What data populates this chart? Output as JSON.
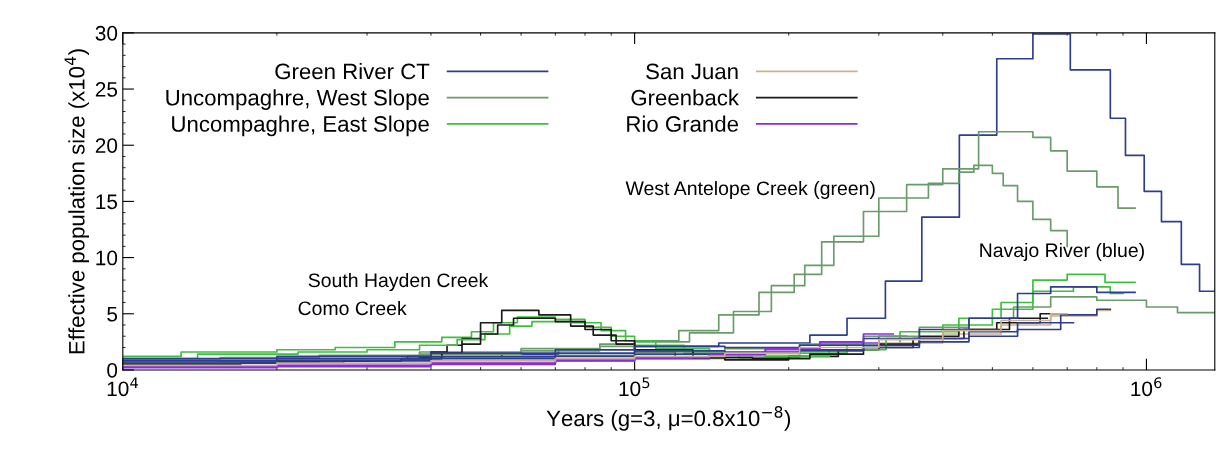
{
  "chart_data": {
    "type": "step",
    "xlabel": "Years (g=3, μ=0.8x10$^{−8}$)",
    "ylabel": "Effective population size (x10$^{4}$)",
    "log": "x",
    "xlim": [
      10000,
      1360000
    ],
    "xticks": [
      {
        "value": 10000,
        "label": "10$^{4}$"
      },
      {
        "value": 100000,
        "label": "10$^{5}$"
      },
      {
        "value": 1000000,
        "label": "10$^{6}$"
      }
    ],
    "ylim": [
      0,
      30
    ],
    "yticks": [
      0,
      5,
      10,
      15,
      20,
      25,
      30
    ],
    "legend": "top left",
    "annotations": [
      "West Antelope Creek (green)",
      "Navajo River (blue)",
      "South Hayden Creek",
      "Como Creek"
    ],
    "series": [
      {
        "name": "Green River CT",
        "color": "#2e3d8f",
        "x": [
          10000,
          15500,
          24200,
          38000,
          55000,
          71000,
          100000,
          146000,
          220000,
          260000,
          309000,
          364000,
          431000,
          510000,
          600000,
          710000,
          850000,
          910000,
          990000,
          1070000,
          1170000,
          1270000,
          1360000
        ],
        "values": [
          0.5,
          0.7,
          0.9,
          1.1,
          1.4,
          1.8,
          2.1,
          2.4,
          3.1,
          4.6,
          7.9,
          13.6,
          20.9,
          27.7,
          29.9,
          26.7,
          22.4,
          19.1,
          15.9,
          13.2,
          9.4,
          7.0,
          7.0
        ]
      },
      {
        "name": "Uncompaghre, West Slope",
        "color": "#6b9a6b",
        "x": [
          10000,
          15500,
          24200,
          38000,
          60000,
          85500,
          100000,
          122000,
          146000,
          175000,
          205000,
          232000,
          280000,
          340000,
          400000,
          470000,
          600000,
          650000,
          700000,
          800000,
          880000,
          950000
        ],
        "values": [
          0.9,
          1.1,
          1.3,
          1.6,
          1.9,
          2.3,
          2.6,
          3.5,
          4.9,
          6.9,
          8.5,
          11.4,
          14.1,
          16.5,
          17.9,
          21.2,
          20.7,
          19.5,
          17.7,
          16.3,
          14.4,
          14.4
        ]
      },
      {
        "name": "Uncompaghre, East Slope",
        "color": "#3ebf3e",
        "x": [
          10000,
          13000,
          20000,
          26000,
          34000,
          42000,
          48000,
          53000,
          59000,
          70000,
          80000,
          90000,
          100000,
          125000,
          160000,
          210000,
          260000,
          330000,
          430000,
          520000,
          600000,
          700000,
          830000,
          950000
        ],
        "values": [
          1.2,
          1.6,
          1.8,
          2.0,
          2.5,
          2.9,
          3.4,
          4.2,
          4.7,
          4.5,
          3.8,
          3.0,
          2.2,
          1.5,
          1.1,
          1.5,
          2.2,
          3.4,
          4.6,
          6.0,
          8.0,
          8.5,
          7.8,
          7.8
        ]
      },
      {
        "name": "San Juan",
        "color": "#c9b28f",
        "x": [
          10000,
          20000,
          40000,
          70000,
          100000,
          150000,
          210000,
          300000,
          400000,
          520000,
          650000,
          800000,
          850000
        ],
        "values": [
          0.3,
          0.4,
          0.6,
          0.8,
          1.0,
          1.3,
          1.8,
          2.4,
          3.2,
          4.0,
          4.8,
          5.3,
          5.3
        ]
      },
      {
        "name": "Greenback",
        "color": "#1a1a1a",
        "x": [
          10000,
          15500,
          24200,
          30400,
          36000,
          40000,
          43000,
          46000,
          50000,
          55000,
          65000,
          75000,
          83000,
          92000,
          100000,
          120000,
          150000,
          200000,
          250000,
          300000,
          360000,
          430000,
          510000,
          620000,
          700000
        ],
        "values": [
          0.6,
          0.7,
          0.8,
          0.9,
          1.2,
          1.6,
          2.2,
          2.8,
          4.2,
          5.3,
          4.9,
          3.9,
          3.1,
          2.3,
          1.6,
          1.1,
          0.9,
          1.2,
          1.8,
          2.3,
          3.0,
          3.6,
          4.2,
          5.0,
          5.0
        ]
      },
      {
        "name": "Rio Grande",
        "color": "#8a2be2",
        "x": [
          10000,
          20000,
          40000,
          70000,
          100000,
          140000,
          180000,
          230000,
          300000,
          340000
        ],
        "values": [
          0.2,
          0.3,
          0.5,
          0.8,
          1.0,
          1.3,
          1.8,
          2.4,
          3.0,
          3.0
        ]
      },
      {
        "color": "#6b9a6b",
        "x": [
          10000,
          15500,
          24200,
          38000,
          60000,
          85500,
          100000,
          128000,
          156000,
          185000,
          215000,
          245000,
          300000,
          375000,
          430000,
          460000,
          500000,
          525000,
          560000,
          600000,
          650000,
          700000,
          700000
        ],
        "values": [
          0.8,
          1.0,
          1.2,
          1.4,
          1.7,
          2.1,
          2.5,
          3.3,
          5.2,
          7.5,
          9.3,
          11.9,
          15.3,
          16.6,
          17.6,
          18.2,
          17.5,
          16.4,
          15.0,
          13.4,
          12.4,
          12.4,
          11.0
        ]
      },
      {
        "color": "#6b9a6b",
        "x": [
          10000,
          20000,
          40000,
          70000,
          100000,
          150000,
          210000,
          280000,
          360000,
          450000,
          550000,
          650000,
          800000,
          1000000,
          1150000,
          1360000
        ],
        "values": [
          0.7,
          0.9,
          1.1,
          1.3,
          1.6,
          1.9,
          2.3,
          3.0,
          3.8,
          4.6,
          5.6,
          6.5,
          6.2,
          5.6,
          5.1,
          5.1
        ]
      },
      {
        "color": "#3ebf3e",
        "x": [
          10000,
          14000,
          22000,
          30000,
          38000,
          45000,
          51000,
          57000,
          63000,
          75000,
          86000,
          96000,
          110000,
          140000,
          180000,
          240000,
          310000,
          400000,
          500000,
          600000,
          720000,
          850000,
          900000
        ],
        "values": [
          1.0,
          1.4,
          1.6,
          1.8,
          2.2,
          2.7,
          3.2,
          3.9,
          4.3,
          4.2,
          3.5,
          2.6,
          1.9,
          1.3,
          1.2,
          1.8,
          2.8,
          4.0,
          5.4,
          7.0,
          7.4,
          6.8,
          6.8
        ]
      },
      {
        "color": "#1a1a1a",
        "x": [
          10000,
          17000,
          27000,
          35000,
          42000,
          46000,
          50000,
          54000,
          58000,
          70000,
          80000,
          90000,
          100000,
          130000,
          170000,
          220000,
          280000,
          350000,
          440000,
          540000,
          640000
        ],
        "values": [
          0.5,
          0.6,
          0.8,
          1.0,
          1.5,
          2.3,
          3.2,
          4.0,
          4.6,
          4.3,
          3.6,
          2.6,
          1.8,
          1.1,
          1.0,
          1.4,
          2.0,
          2.8,
          3.6,
          4.6,
          4.6
        ]
      },
      {
        "color": "#2e3d8f",
        "x": [
          10000,
          20000,
          40000,
          70000,
          100000,
          150000,
          210000,
          280000,
          360000,
          450000,
          560000,
          650000,
          800000,
          900000,
          950000
        ],
        "values": [
          1.0,
          1.2,
          1.5,
          1.8,
          2.1,
          2.0,
          2.2,
          2.8,
          3.6,
          4.6,
          6.8,
          7.4,
          6.9,
          6.9,
          6.9
        ]
      },
      {
        "color": "#2e3d8f",
        "x": [
          10000,
          20000,
          40000,
          70000,
          100000,
          150000,
          210000,
          280000,
          360000,
          450000,
          560000,
          680000,
          800000,
          850000
        ],
        "values": [
          0.8,
          1.0,
          1.2,
          1.5,
          1.7,
          1.6,
          1.8,
          2.2,
          2.8,
          3.4,
          4.2,
          4.9,
          5.4,
          5.4
        ]
      },
      {
        "color": "#2e3d8f",
        "x": [
          10000,
          20000,
          40000,
          70000,
          100000,
          150000,
          210000,
          280000,
          360000,
          450000,
          560000,
          680000,
          720000
        ],
        "values": [
          0.6,
          0.8,
          1.0,
          1.2,
          1.4,
          1.5,
          1.7,
          2.0,
          2.5,
          3.0,
          3.6,
          4.2,
          4.2
        ]
      },
      {
        "color": "#8a2be2",
        "x": [
          10000,
          20000,
          40000,
          70000,
          100000,
          140000,
          180000,
          230000,
          280000,
          320000
        ],
        "values": [
          0.3,
          0.4,
          0.6,
          0.9,
          1.1,
          1.4,
          1.9,
          2.5,
          3.2,
          3.2
        ]
      },
      {
        "color": "#c9b28f",
        "x": [
          10000,
          20000,
          40000,
          70000,
          100000,
          150000,
          210000,
          300000,
          400000,
          520000,
          650000,
          700000
        ],
        "values": [
          0.4,
          0.6,
          0.8,
          1.0,
          1.2,
          1.5,
          2.0,
          2.7,
          3.5,
          4.4,
          5.0,
          5.0
        ]
      }
    ]
  }
}
